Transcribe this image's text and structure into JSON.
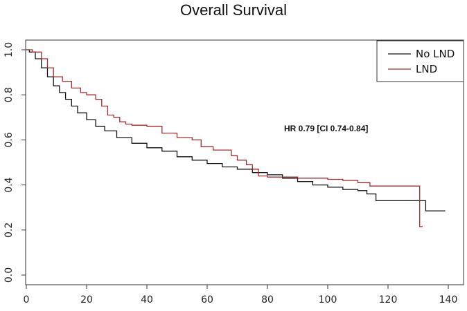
{
  "chart_data": {
    "type": "line",
    "title": "Overall Survival",
    "xlabel": "",
    "ylabel": "",
    "xlim": [
      0,
      140
    ],
    "ylim": [
      0.0,
      1.0
    ],
    "x_ticks": [
      "0",
      "20",
      "40",
      "60",
      "80",
      "100",
      "120",
      "140"
    ],
    "y_ticks": [
      "0.0",
      "0.2",
      "0.4",
      "0.6",
      "0.8",
      "1.0"
    ],
    "legend_position": "top-right",
    "annotation": "HR 0.79 [CI 0.74-0.84]",
    "series": [
      {
        "name": "No LND",
        "color": "#111111",
        "x": [
          0,
          1,
          3,
          5,
          7,
          9,
          11,
          13,
          15,
          17,
          20,
          23,
          26,
          30,
          35,
          40,
          45,
          50,
          55,
          60,
          65,
          70,
          75,
          80,
          85,
          90,
          95,
          100,
          105,
          110,
          113,
          116,
          120,
          125,
          130,
          132.5,
          132.5,
          139
        ],
        "y": [
          1.0,
          0.99,
          0.96,
          0.92,
          0.88,
          0.84,
          0.81,
          0.78,
          0.75,
          0.72,
          0.69,
          0.66,
          0.64,
          0.61,
          0.585,
          0.565,
          0.55,
          0.525,
          0.51,
          0.495,
          0.48,
          0.47,
          0.455,
          0.445,
          0.43,
          0.415,
          0.4,
          0.39,
          0.38,
          0.375,
          0.36,
          0.33,
          0.33,
          0.33,
          0.33,
          0.33,
          0.285,
          0.285
        ]
      },
      {
        "name": "LND",
        "color": "#a52a2a",
        "x": [
          0,
          2,
          5,
          7,
          9,
          12,
          15,
          18,
          20,
          23,
          25,
          27,
          29,
          31,
          33,
          35,
          40,
          45,
          50,
          55,
          58,
          62,
          65,
          68,
          70,
          73,
          75,
          77,
          80,
          85,
          90,
          95,
          100,
          105,
          110,
          114,
          120,
          125,
          130.5,
          130.5,
          131.5
        ],
        "y": [
          1.0,
          0.99,
          0.96,
          0.92,
          0.88,
          0.86,
          0.83,
          0.81,
          0.8,
          0.78,
          0.75,
          0.71,
          0.7,
          0.68,
          0.67,
          0.665,
          0.66,
          0.63,
          0.61,
          0.6,
          0.57,
          0.555,
          0.555,
          0.53,
          0.51,
          0.49,
          0.47,
          0.44,
          0.435,
          0.435,
          0.43,
          0.43,
          0.425,
          0.42,
          0.41,
          0.395,
          0.395,
          0.395,
          0.395,
          0.215,
          0.215
        ]
      }
    ]
  }
}
